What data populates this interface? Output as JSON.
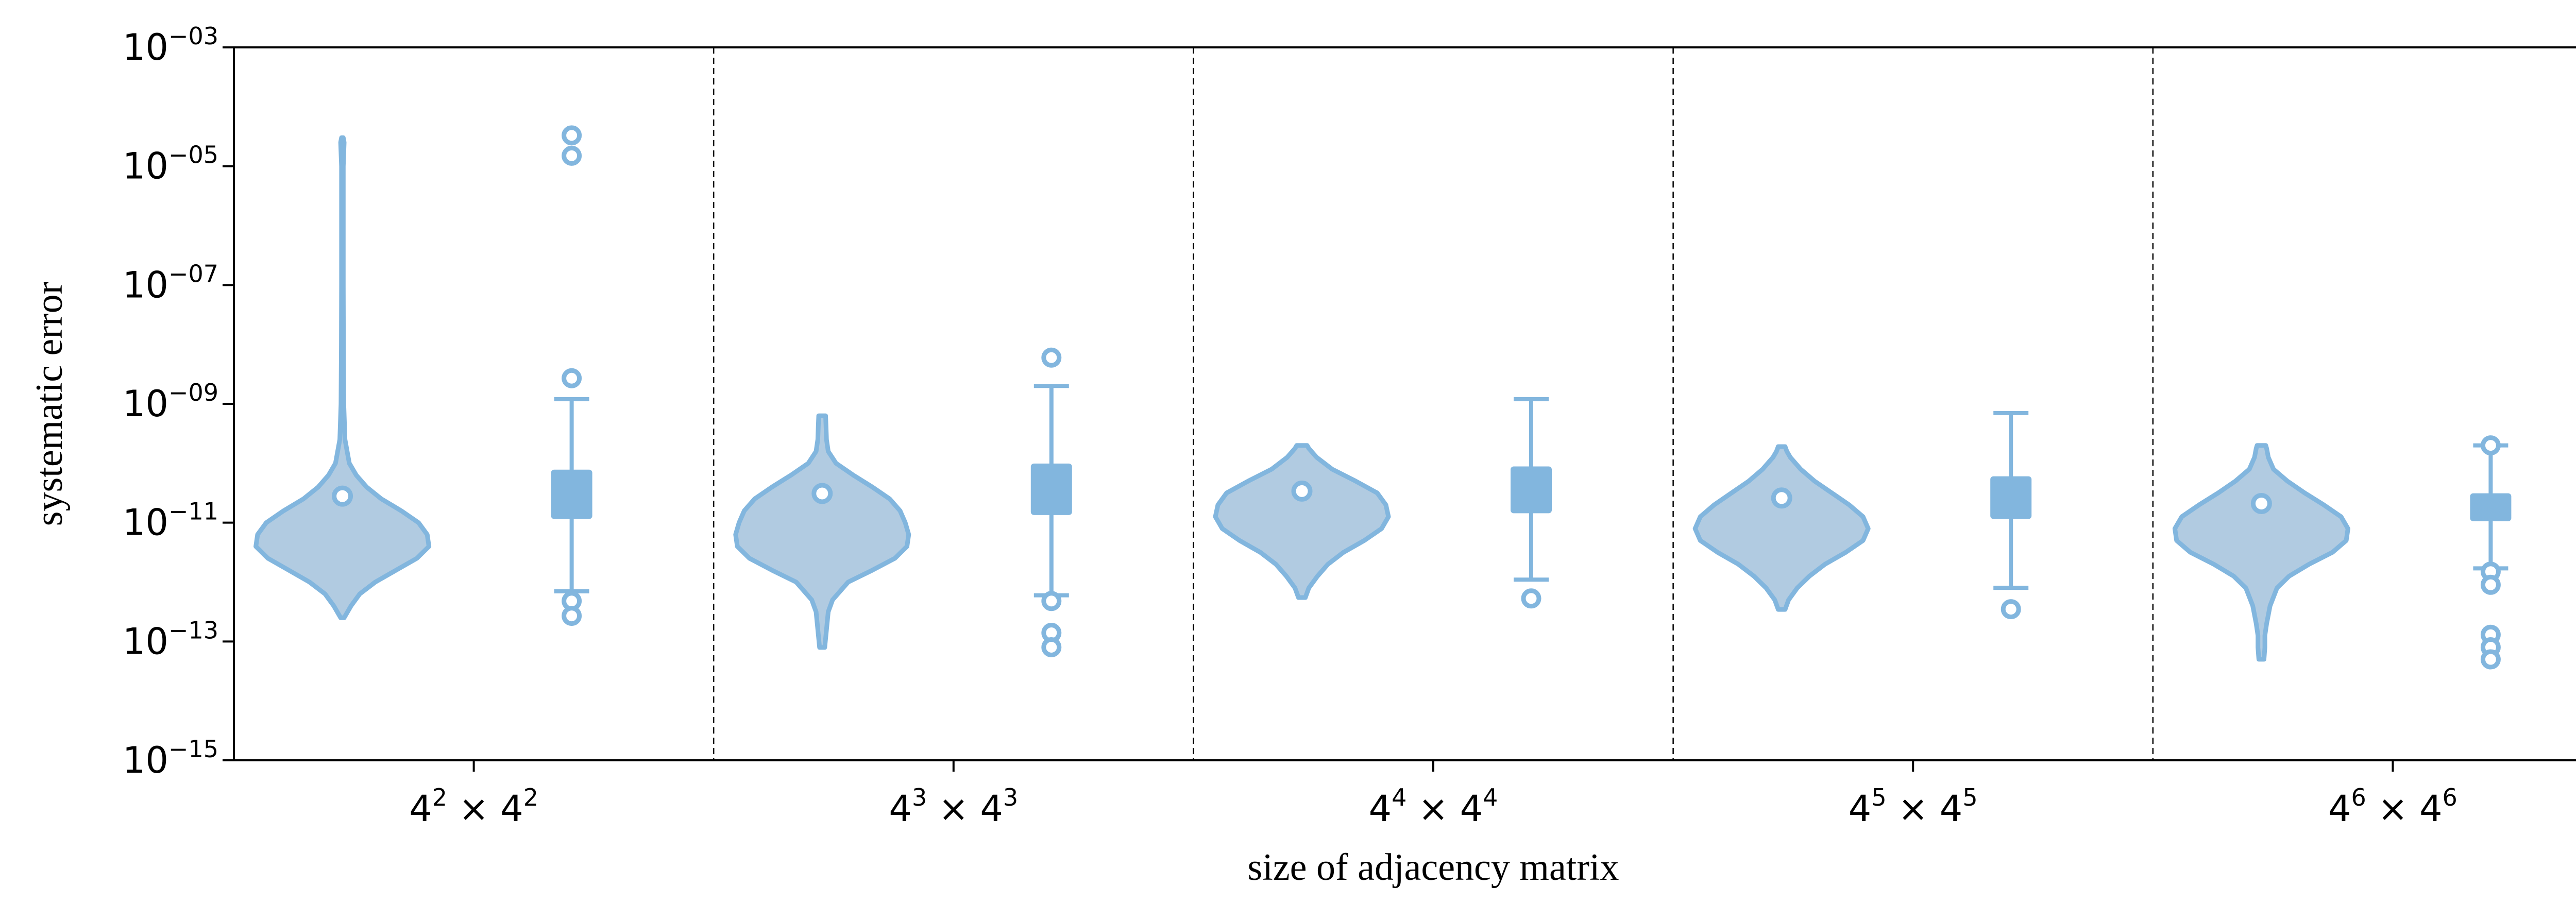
{
  "chart_data": {
    "type": "violin+box",
    "title": "",
    "xlabel": "size of adjacency matrix",
    "ylabel": "systematic error",
    "yscale": "log",
    "ylim_exponents": [
      -15,
      -3
    ],
    "yticks": [
      {
        "base": "10",
        "exp": "−15",
        "value_exponent": -15
      },
      {
        "base": "10",
        "exp": "−13",
        "value_exponent": -13
      },
      {
        "base": "10",
        "exp": "−11",
        "value_exponent": -11
      },
      {
        "base": "10",
        "exp": "−09",
        "value_exponent": -9
      },
      {
        "base": "10",
        "exp": "−07",
        "value_exponent": -7
      },
      {
        "base": "10",
        "exp": "−05",
        "value_exponent": -5
      },
      {
        "base": "10",
        "exp": "−03",
        "value_exponent": -3
      }
    ],
    "categories": [
      {
        "base": "4",
        "exp": "2",
        "times": "×"
      },
      {
        "base": "4",
        "exp": "3",
        "times": "×"
      },
      {
        "base": "4",
        "exp": "4",
        "times": "×"
      },
      {
        "base": "4",
        "exp": "5",
        "times": "×"
      },
      {
        "base": "4",
        "exp": "6",
        "times": "×"
      }
    ],
    "colors": {
      "violin_fill": "#b1cbe1",
      "violin_edge": "#82b6de",
      "box": "#82b6de",
      "axis": "#000000"
    },
    "groups": [
      {
        "violin_min": 2.4e-13,
        "violin_max": 3e-05,
        "median": 2.8e-11,
        "violin_profile": [
          [
            -12.6,
            0.02
          ],
          [
            -12.4,
            0.1
          ],
          [
            -12.2,
            0.2
          ],
          [
            -12.0,
            0.38
          ],
          [
            -11.8,
            0.62
          ],
          [
            -11.6,
            0.86
          ],
          [
            -11.4,
            1.0
          ],
          [
            -11.2,
            0.98
          ],
          [
            -11.0,
            0.88
          ],
          [
            -10.8,
            0.68
          ],
          [
            -10.6,
            0.45
          ],
          [
            -10.4,
            0.28
          ],
          [
            -10.2,
            0.16
          ],
          [
            -10.0,
            0.08
          ],
          [
            -9.6,
            0.03
          ],
          [
            -9.0,
            0.016
          ],
          [
            -8.0,
            0.012
          ],
          [
            -7.0,
            0.01
          ],
          [
            -6.0,
            0.01
          ],
          [
            -5.0,
            0.01
          ],
          [
            -4.6,
            0.02
          ],
          [
            -4.52,
            0.01
          ]
        ],
        "box_q1": 1.2e-11,
        "box_q3": 7.5e-11,
        "box_median": 3e-11,
        "whisker_low": 7e-13,
        "whisker_high": 1.2e-09,
        "outliers": [
          3.3e-05,
          1.5e-05,
          2.7e-09,
          4.8e-13,
          2.7e-13
        ]
      },
      {
        "violin_min": 7.5e-14,
        "violin_max": 6e-09,
        "median": 3.1e-11,
        "violin_profile": [
          [
            -13.1,
            0.03
          ],
          [
            -12.8,
            0.05
          ],
          [
            -12.5,
            0.07
          ],
          [
            -12.3,
            0.12
          ],
          [
            -12.0,
            0.3
          ],
          [
            -11.8,
            0.58
          ],
          [
            -11.6,
            0.84
          ],
          [
            -11.4,
            0.98
          ],
          [
            -11.2,
            1.0
          ],
          [
            -11.0,
            0.96
          ],
          [
            -10.8,
            0.9
          ],
          [
            -10.6,
            0.78
          ],
          [
            -10.4,
            0.58
          ],
          [
            -10.2,
            0.36
          ],
          [
            -10.0,
            0.16
          ],
          [
            -9.8,
            0.07
          ],
          [
            -9.6,
            0.05
          ],
          [
            -9.4,
            0.045
          ],
          [
            -9.2,
            0.04
          ]
        ],
        "box_q1": 1.4e-11,
        "box_q3": 9.5e-11,
        "box_median": 3.5e-11,
        "whisker_low": 6e-13,
        "whisker_high": 2e-09,
        "outliers": [
          6e-09,
          4.8e-13,
          1.4e-13,
          8e-14
        ]
      },
      {
        "violin_min": 5.5e-13,
        "violin_max": 5.5e-10,
        "median": 3.4e-11,
        "violin_profile": [
          [
            -12.26,
            0.04
          ],
          [
            -12.1,
            0.08
          ],
          [
            -11.9,
            0.18
          ],
          [
            -11.7,
            0.3
          ],
          [
            -11.5,
            0.48
          ],
          [
            -11.3,
            0.72
          ],
          [
            -11.1,
            0.92
          ],
          [
            -10.9,
            1.0
          ],
          [
            -10.7,
            0.97
          ],
          [
            -10.5,
            0.87
          ],
          [
            -10.3,
            0.62
          ],
          [
            -10.1,
            0.35
          ],
          [
            -9.9,
            0.17
          ],
          [
            -9.75,
            0.08
          ],
          [
            -9.7,
            0.06
          ]
        ],
        "box_q1": 1.5e-11,
        "box_q3": 8.5e-11,
        "box_median": 3.5e-11,
        "whisker_low": 1.1e-12,
        "whisker_high": 1.2e-09,
        "outliers": [
          5.3e-13
        ]
      },
      {
        "violin_min": 3.5e-13,
        "violin_max": 6.5e-10,
        "median": 2.6e-11,
        "violin_profile": [
          [
            -12.46,
            0.04
          ],
          [
            -12.3,
            0.08
          ],
          [
            -12.1,
            0.18
          ],
          [
            -11.9,
            0.32
          ],
          [
            -11.7,
            0.5
          ],
          [
            -11.5,
            0.74
          ],
          [
            -11.3,
            0.94
          ],
          [
            -11.1,
            1.0
          ],
          [
            -10.9,
            0.94
          ],
          [
            -10.7,
            0.78
          ],
          [
            -10.5,
            0.58
          ],
          [
            -10.3,
            0.38
          ],
          [
            -10.1,
            0.22
          ],
          [
            -9.9,
            0.1
          ],
          [
            -9.8,
            0.06
          ],
          [
            -9.72,
            0.04
          ]
        ],
        "box_q1": 1.2e-11,
        "box_q3": 5.8e-11,
        "box_median": 2.6e-11,
        "whisker_low": 8e-13,
        "whisker_high": 7e-10,
        "outliers": [
          3.5e-13
        ]
      },
      {
        "violin_min": 5e-14,
        "violin_max": 2e-10,
        "median": 2.1e-11,
        "violin_profile": [
          [
            -13.3,
            0.03
          ],
          [
            -13.1,
            0.04
          ],
          [
            -12.9,
            0.04
          ],
          [
            -12.7,
            0.06
          ],
          [
            -12.4,
            0.1
          ],
          [
            -12.1,
            0.18
          ],
          [
            -11.9,
            0.32
          ],
          [
            -11.7,
            0.55
          ],
          [
            -11.5,
            0.82
          ],
          [
            -11.3,
            0.98
          ],
          [
            -11.1,
            1.0
          ],
          [
            -10.9,
            0.92
          ],
          [
            -10.7,
            0.72
          ],
          [
            -10.5,
            0.5
          ],
          [
            -10.3,
            0.3
          ],
          [
            -10.1,
            0.14
          ],
          [
            -9.9,
            0.08
          ],
          [
            -9.75,
            0.06
          ],
          [
            -9.7,
            0.05
          ]
        ],
        "box_q1": 1.1e-11,
        "box_q3": 3e-11,
        "box_median": 2e-11,
        "whisker_low": 1.7e-12,
        "whisker_high": 2e-10,
        "outliers": [
          2e-10,
          1.5e-12,
          9e-13,
          1.3e-13,
          8e-14,
          5e-14
        ]
      }
    ]
  }
}
